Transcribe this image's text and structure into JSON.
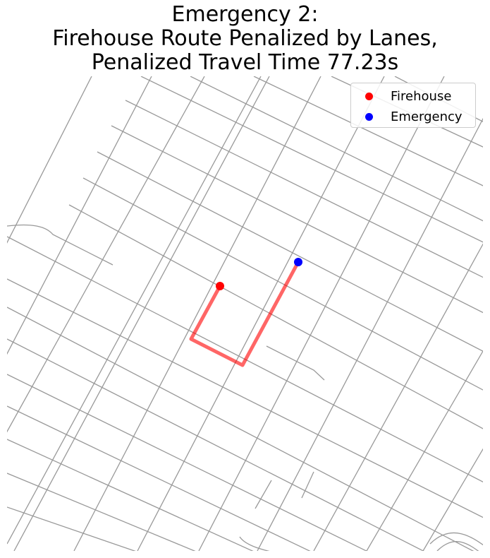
{
  "title": {
    "line1": "Emergency 2:",
    "line2": "Firehouse Route Penalized by Lanes,",
    "line3": "Penalized Travel Time 77.23s"
  },
  "legend": {
    "placement": "top-right",
    "items": [
      {
        "label": "Firehouse",
        "color": "#ff0000",
        "icon": "red-dot"
      },
      {
        "label": "Emergency",
        "color": "#0000ff",
        "icon": "blue-dot"
      }
    ]
  },
  "map": {
    "street_color": "#999999",
    "route_color": "#ff0000",
    "axes_visible": false
  }
}
